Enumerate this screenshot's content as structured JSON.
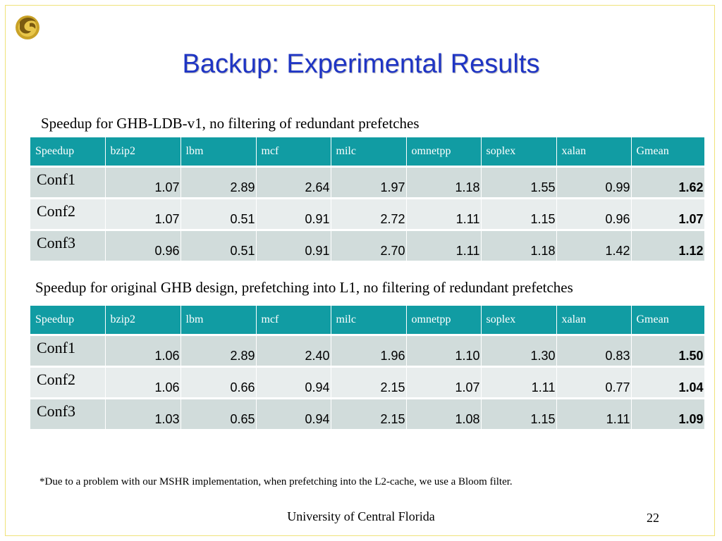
{
  "slide": {
    "title": "Backup: Experimental Results",
    "footer": "University of Central Florida",
    "page_number": "22",
    "footnote": "*Due to a problem with our MSHR implementation, when prefetching into the L2-cache, we use a Bloom filter."
  },
  "tables": [
    {
      "caption": "Speedup for GHB-LDB-v1, no filtering of redundant prefetches",
      "headers": [
        "Speedup",
        "bzip2",
        "lbm",
        "mcf",
        "milc",
        "omnetpp",
        "soplex",
        "xalan",
        "Gmean"
      ],
      "rows": [
        {
          "label": "Conf1",
          "values": [
            "1.07",
            "2.89",
            "2.64",
            "1.97",
            "1.18",
            "1.55",
            "0.99",
            "1.62"
          ]
        },
        {
          "label": "Conf2",
          "values": [
            "1.07",
            "0.51",
            "0.91",
            "2.72",
            "1.11",
            "1.15",
            "0.96",
            "1.07"
          ]
        },
        {
          "label": "Conf3",
          "values": [
            "0.96",
            "0.51",
            "0.91",
            "2.70",
            "1.11",
            "1.18",
            "1.42",
            "1.12"
          ]
        }
      ]
    },
    {
      "caption": "Speedup for original GHB design, prefetching into L1, no filtering of redundant prefetches",
      "headers": [
        "Speedup",
        "bzip2",
        "lbm",
        "mcf",
        "milc",
        "omnetpp",
        "soplex",
        "xalan",
        "Gmean"
      ],
      "rows": [
        {
          "label": "Conf1",
          "values": [
            "1.06",
            "2.89",
            "2.40",
            "1.96",
            "1.10",
            "1.30",
            "0.83",
            "1.50"
          ]
        },
        {
          "label": "Conf2",
          "values": [
            "1.06",
            "0.66",
            "0.94",
            "2.15",
            "1.07",
            "1.11",
            "0.77",
            "1.04"
          ]
        },
        {
          "label": "Conf3",
          "values": [
            "1.03",
            "0.65",
            "0.94",
            "2.15",
            "1.08",
            "1.15",
            "1.11",
            "1.09"
          ]
        }
      ]
    }
  ],
  "colors": {
    "title": "#1f35c4",
    "header_bg": "#119ca3",
    "row_odd": "#d1dcdb",
    "row_even": "#e8eded",
    "frame": "#f0e27a"
  },
  "icons": {
    "logo": "ucf-pegasus-logo-icon"
  }
}
